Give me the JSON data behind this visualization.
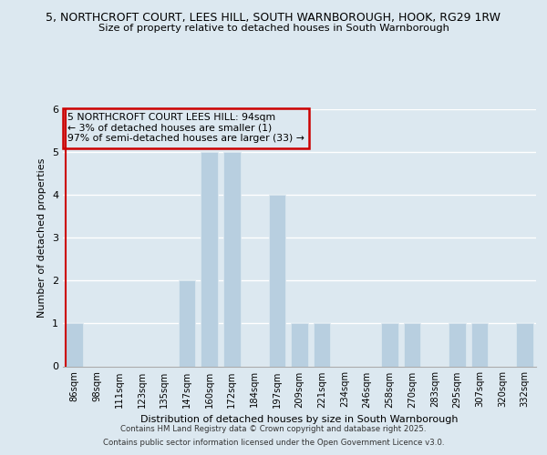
{
  "title_line1": "5, NORTHCROFT COURT, LEES HILL, SOUTH WARNBOROUGH, HOOK, RG29 1RW",
  "title_line2": "Size of property relative to detached houses in South Warnborough",
  "xlabel": "Distribution of detached houses by size in South Warnborough",
  "ylabel": "Number of detached properties",
  "categories": [
    "86sqm",
    "98sqm",
    "111sqm",
    "123sqm",
    "135sqm",
    "147sqm",
    "160sqm",
    "172sqm",
    "184sqm",
    "197sqm",
    "209sqm",
    "221sqm",
    "234sqm",
    "246sqm",
    "258sqm",
    "270sqm",
    "283sqm",
    "295sqm",
    "307sqm",
    "320sqm",
    "332sqm"
  ],
  "values": [
    1,
    0,
    0,
    0,
    0,
    2,
    5,
    5,
    0,
    4,
    1,
    1,
    0,
    0,
    1,
    1,
    0,
    1,
    1,
    0,
    1
  ],
  "bar_color_normal": "#b8cfe0",
  "subject_line_color": "#cc0000",
  "annotation_text": "5 NORTHCROFT COURT LEES HILL: 94sqm\n← 3% of detached houses are smaller (1)\n97% of semi-detached houses are larger (33) →",
  "subject_bin_index": 0,
  "ylim": [
    0,
    6
  ],
  "yticks": [
    0,
    1,
    2,
    3,
    4,
    5,
    6
  ],
  "background_color": "#dce8f0",
  "grid_color": "#ffffff",
  "footer_line1": "Contains HM Land Registry data © Crown copyright and database right 2025.",
  "footer_line2": "Contains public sector information licensed under the Open Government Licence v3.0."
}
